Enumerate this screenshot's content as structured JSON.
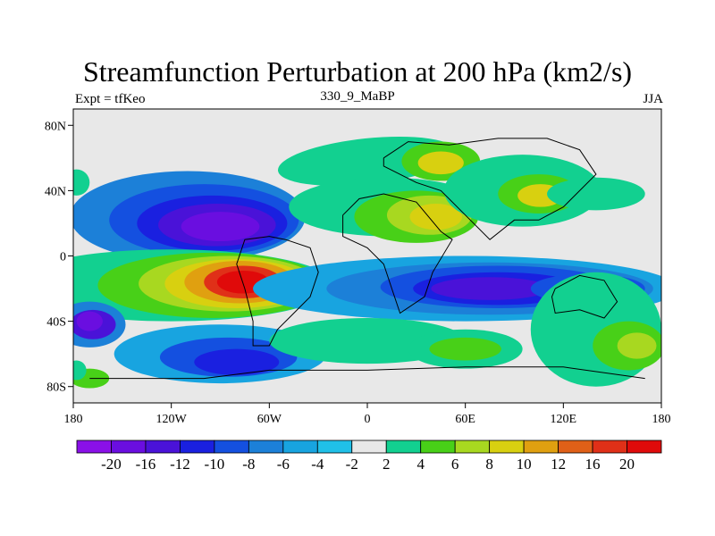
{
  "figure": {
    "title": "Streamfunction Perturbation at 200 hPa (km2/s)",
    "left_label": "Expt = tfKeo",
    "center_label": "330_9_MaBP",
    "right_label": "JJA"
  },
  "chart_data": {
    "type": "heatmap",
    "title": "Streamfunction Perturbation at 200 hPa (km2/s)",
    "subtitle_left": "Expt = tfKeo",
    "subtitle_center": "330_9_MaBP",
    "subtitle_right": "JJA",
    "xlabel": "",
    "ylabel": "",
    "xlim": [
      -180,
      180
    ],
    "ylim": [
      -90,
      90
    ],
    "x_ticks": [
      {
        "value": -180,
        "label": "180"
      },
      {
        "value": -120,
        "label": "120W"
      },
      {
        "value": -60,
        "label": "60W"
      },
      {
        "value": 0,
        "label": "0"
      },
      {
        "value": 60,
        "label": "60E"
      },
      {
        "value": 120,
        "label": "120E"
      },
      {
        "value": 180,
        "label": "180"
      }
    ],
    "y_ticks": [
      {
        "value": 80,
        "label": "80N"
      },
      {
        "value": 40,
        "label": "40N"
      },
      {
        "value": 0,
        "label": "0"
      },
      {
        "value": -40,
        "label": "40S"
      },
      {
        "value": -80,
        "label": "80S"
      }
    ],
    "colorbar": {
      "labels": [
        "-20",
        "-16",
        "-12",
        "-10",
        "-8",
        "-6",
        "-4",
        "-2",
        "2",
        "4",
        "6",
        "8",
        "10",
        "12",
        "16",
        "20"
      ],
      "colors": [
        "#8a10e8",
        "#6a0ee0",
        "#4a12d8",
        "#1a20e0",
        "#1450e0",
        "#1c80d8",
        "#18a4e0",
        "#20c0e8",
        "#e8e8e8",
        "#12d090",
        "#48d018",
        "#a8d820",
        "#d8d010",
        "#e0a010",
        "#e06018",
        "#e03018",
        "#e00a0a"
      ]
    },
    "anomaly_centers": [
      {
        "lon": -90,
        "lat": 18,
        "value": -17
      },
      {
        "lon": -75,
        "lat": -16,
        "value": 21
      },
      {
        "lon": -100,
        "lat": -20,
        "value": 9
      },
      {
        "lon": -165,
        "lat": -40,
        "value": -20
      },
      {
        "lon": -80,
        "lat": -65,
        "value": -13
      },
      {
        "lon": 75,
        "lat": -20,
        "value": -18
      },
      {
        "lon": 135,
        "lat": -17,
        "value": -9
      },
      {
        "lon": 45,
        "lat": 57,
        "value": 13
      },
      {
        "lon": 105,
        "lat": 37,
        "value": 14
      },
      {
        "lon": 40,
        "lat": 23,
        "value": 13
      },
      {
        "lon": 160,
        "lat": -55,
        "value": 8
      },
      {
        "lon": 60,
        "lat": -55,
        "value": 6
      }
    ],
    "grid": false
  }
}
